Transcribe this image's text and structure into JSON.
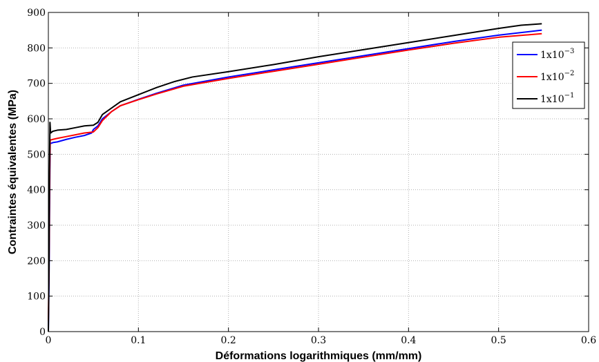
{
  "chart_data": {
    "type": "line",
    "title": "",
    "xlabel": "Déformations logarithmiques (mm/mm)",
    "ylabel": "Contraintes équivalentes (MPa)",
    "xlim": [
      0,
      0.6
    ],
    "ylim": [
      0,
      900
    ],
    "x_ticks": [
      "0",
      "0.1",
      "0.2",
      "0.3",
      "0.4",
      "0.5",
      "0.6"
    ],
    "y_ticks": [
      "0",
      "100",
      "200",
      "300",
      "400",
      "500",
      "600",
      "700",
      "800",
      "900"
    ],
    "grid": true,
    "legend_position": "top-right",
    "series": [
      {
        "name": "1x10^-3",
        "label_base": "1x10",
        "label_exp": "−3",
        "color": "#0000ff",
        "points": [
          [
            0,
            0
          ],
          [
            0.0008,
            150
          ],
          [
            0.0015,
            400
          ],
          [
            0.002,
            530
          ],
          [
            0.005,
            533
          ],
          [
            0.01,
            535
          ],
          [
            0.02,
            542
          ],
          [
            0.03,
            548
          ],
          [
            0.04,
            553
          ],
          [
            0.048,
            560
          ],
          [
            0.05,
            570
          ],
          [
            0.055,
            580
          ],
          [
            0.06,
            600
          ],
          [
            0.07,
            620
          ],
          [
            0.08,
            637
          ],
          [
            0.1,
            655
          ],
          [
            0.12,
            672
          ],
          [
            0.15,
            695
          ],
          [
            0.2,
            718
          ],
          [
            0.25,
            738
          ],
          [
            0.3,
            758
          ],
          [
            0.35,
            778
          ],
          [
            0.4,
            798
          ],
          [
            0.45,
            818
          ],
          [
            0.5,
            836
          ],
          [
            0.548,
            850
          ]
        ]
      },
      {
        "name": "1x10^-2",
        "label_base": "1x10",
        "label_exp": "−2",
        "color": "#ff0000",
        "points": [
          [
            0,
            30
          ],
          [
            0.0008,
            200
          ],
          [
            0.0015,
            450
          ],
          [
            0.002,
            540
          ],
          [
            0.005,
            542
          ],
          [
            0.01,
            545
          ],
          [
            0.02,
            550
          ],
          [
            0.03,
            555
          ],
          [
            0.04,
            560
          ],
          [
            0.05,
            563
          ],
          [
            0.055,
            575
          ],
          [
            0.06,
            595
          ],
          [
            0.07,
            620
          ],
          [
            0.08,
            637
          ],
          [
            0.1,
            654
          ],
          [
            0.12,
            670
          ],
          [
            0.15,
            692
          ],
          [
            0.2,
            714
          ],
          [
            0.25,
            734
          ],
          [
            0.3,
            754
          ],
          [
            0.35,
            774
          ],
          [
            0.4,
            794
          ],
          [
            0.45,
            813
          ],
          [
            0.5,
            830
          ],
          [
            0.548,
            840
          ]
        ]
      },
      {
        "name": "1x10^-1",
        "label_base": "1x10",
        "label_exp": "−1",
        "color": "#000000",
        "points": [
          [
            0,
            0
          ],
          [
            0.0008,
            200
          ],
          [
            0.0012,
            450
          ],
          [
            0.0018,
            590
          ],
          [
            0.0025,
            560
          ],
          [
            0.005,
            565
          ],
          [
            0.01,
            568
          ],
          [
            0.02,
            570
          ],
          [
            0.03,
            575
          ],
          [
            0.04,
            580
          ],
          [
            0.05,
            582
          ],
          [
            0.055,
            590
          ],
          [
            0.06,
            612
          ],
          [
            0.07,
            630
          ],
          [
            0.08,
            648
          ],
          [
            0.1,
            668
          ],
          [
            0.12,
            688
          ],
          [
            0.14,
            705
          ],
          [
            0.16,
            718
          ],
          [
            0.2,
            733
          ],
          [
            0.25,
            753
          ],
          [
            0.3,
            775
          ],
          [
            0.35,
            795
          ],
          [
            0.4,
            815
          ],
          [
            0.45,
            835
          ],
          [
            0.5,
            855
          ],
          [
            0.525,
            864
          ],
          [
            0.548,
            868
          ]
        ]
      }
    ]
  }
}
